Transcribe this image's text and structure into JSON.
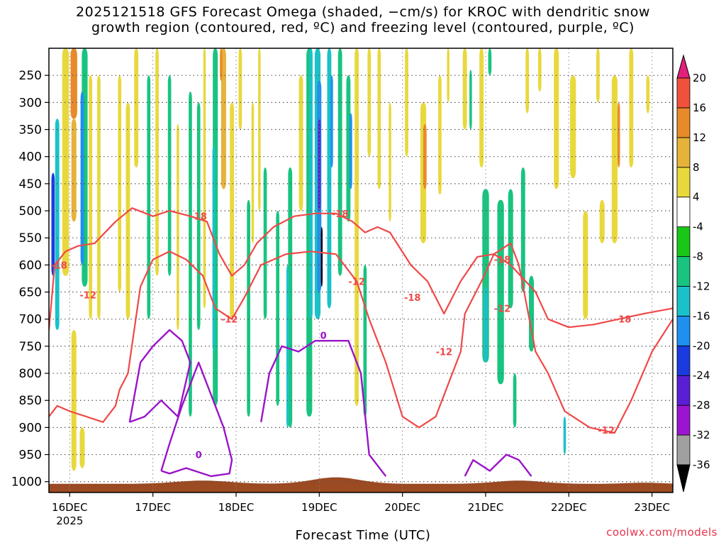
{
  "chart_data": {
    "type": "heatmap",
    "title_lines": [
      "2025121518 GFS Forecast Omega (shaded, −cm/s) for KROC with dendritic snow",
      "growth region (contoured, red, ºC) and freezing level (contoured, purple, ºC)"
    ],
    "xlabel": "Forecast Time (UTC)",
    "x_ticks": [
      "16DEC",
      "17DEC",
      "18DEC",
      "19DEC",
      "20DEC",
      "21DEC",
      "22DEC",
      "23DEC"
    ],
    "x_year": "2025",
    "x_range_days": [
      15.75,
      23.25
    ],
    "y_ticks": [
      250,
      300,
      350,
      400,
      450,
      500,
      550,
      600,
      650,
      700,
      750,
      800,
      850,
      900,
      950,
      1000
    ],
    "y_range_hpa": [
      1020,
      200
    ],
    "colorbar": {
      "levels": [
        -36,
        -32,
        -28,
        -24,
        -20,
        -16,
        -12,
        -8,
        -4,
        4,
        8,
        12,
        16,
        20
      ],
      "colors": [
        "#000000",
        "#a0a0a0",
        "#9b14cf",
        "#5a1fd4",
        "#1a3be0",
        "#1f8ff0",
        "#19c2c9",
        "#18c480",
        "#19c716",
        "#ffffff",
        "#e8d83c",
        "#e6b23a",
        "#e88a2a",
        "#f0503c",
        "#e0207a"
      ]
    },
    "red_contour_labels": [
      "-18",
      "-12"
    ],
    "purple_contour_label": "0",
    "omega_cells": [
      {
        "day": 15.95,
        "p0": 200,
        "p1": 620,
        "w": 0.08,
        "v": 8
      },
      {
        "day": 16.05,
        "p0": 200,
        "p1": 330,
        "w": 0.08,
        "v": 16
      },
      {
        "day": 16.05,
        "p0": 330,
        "p1": 520,
        "w": 0.06,
        "v": 10
      },
      {
        "day": 15.85,
        "p0": 330,
        "p1": 720,
        "w": 0.05,
        "v": -12
      },
      {
        "day": 15.8,
        "p0": 430,
        "p1": 620,
        "w": 0.04,
        "v": -22
      },
      {
        "day": 16.18,
        "p0": 200,
        "p1": 640,
        "w": 0.07,
        "v": -10
      },
      {
        "day": 16.15,
        "p0": 280,
        "p1": 600,
        "w": 0.04,
        "v": -16
      },
      {
        "day": 16.25,
        "p0": 250,
        "p1": 700,
        "w": 0.04,
        "v": 6
      },
      {
        "day": 16.35,
        "p0": 250,
        "p1": 700,
        "w": 0.04,
        "v": 6
      },
      {
        "day": 16.05,
        "p0": 720,
        "p1": 980,
        "w": 0.06,
        "v": 6
      },
      {
        "day": 16.15,
        "p0": 900,
        "p1": 975,
        "w": 0.06,
        "v": 6
      },
      {
        "day": 16.6,
        "p0": 250,
        "p1": 650,
        "w": 0.04,
        "v": 6
      },
      {
        "day": 16.7,
        "p0": 300,
        "p1": 700,
        "w": 0.05,
        "v": 6
      },
      {
        "day": 16.8,
        "p0": 200,
        "p1": 420,
        "w": 0.05,
        "v": 6
      },
      {
        "day": 16.95,
        "p0": 250,
        "p1": 700,
        "w": 0.04,
        "v": -8
      },
      {
        "day": 17.05,
        "p0": 200,
        "p1": 620,
        "w": 0.04,
        "v": 6
      },
      {
        "day": 17.2,
        "p0": 250,
        "p1": 620,
        "w": 0.04,
        "v": -8
      },
      {
        "day": 17.3,
        "p0": 340,
        "p1": 720,
        "w": 0.03,
        "v": 6
      },
      {
        "day": 17.45,
        "p0": 280,
        "p1": 880,
        "w": 0.04,
        "v": -8
      },
      {
        "day": 17.55,
        "p0": 300,
        "p1": 720,
        "w": 0.04,
        "v": -8
      },
      {
        "day": 17.62,
        "p0": 200,
        "p1": 680,
        "w": 0.03,
        "v": 6
      },
      {
        "day": 17.75,
        "p0": 200,
        "p1": 860,
        "w": 0.06,
        "v": -8
      },
      {
        "day": 17.73,
        "p0": 380,
        "p1": 760,
        "w": 0.03,
        "v": -14
      },
      {
        "day": 17.85,
        "p0": 200,
        "p1": 460,
        "w": 0.06,
        "v": 10
      },
      {
        "day": 17.82,
        "p0": 200,
        "p1": 260,
        "w": 0.03,
        "v": 16
      },
      {
        "day": 17.95,
        "p0": 300,
        "p1": 700,
        "w": 0.05,
        "v": 6
      },
      {
        "day": 18.05,
        "p0": 200,
        "p1": 350,
        "w": 0.04,
        "v": 6
      },
      {
        "day": 18.15,
        "p0": 480,
        "p1": 880,
        "w": 0.04,
        "v": -8
      },
      {
        "day": 18.2,
        "p0": 300,
        "p1": 560,
        "w": 0.03,
        "v": 6
      },
      {
        "day": 18.28,
        "p0": 200,
        "p1": 500,
        "w": 0.03,
        "v": 6
      },
      {
        "day": 18.35,
        "p0": 420,
        "p1": 700,
        "w": 0.04,
        "v": -8
      },
      {
        "day": 18.5,
        "p0": 500,
        "p1": 860,
        "w": 0.04,
        "v": -8
      },
      {
        "day": 18.65,
        "p0": 420,
        "p1": 900,
        "w": 0.05,
        "v": -8
      },
      {
        "day": 18.62,
        "p0": 600,
        "p1": 900,
        "w": 0.03,
        "v": -14
      },
      {
        "day": 18.78,
        "p0": 250,
        "p1": 500,
        "w": 0.05,
        "v": 6
      },
      {
        "day": 18.88,
        "p0": 200,
        "p1": 880,
        "w": 0.07,
        "v": -8
      },
      {
        "day": 18.9,
        "p0": 200,
        "p1": 700,
        "w": 0.04,
        "v": -14
      },
      {
        "day": 18.98,
        "p0": 200,
        "p1": 700,
        "w": 0.07,
        "v": -12
      },
      {
        "day": 19.0,
        "p0": 260,
        "p1": 650,
        "w": 0.05,
        "v": -18
      },
      {
        "day": 19.0,
        "p0": 330,
        "p1": 500,
        "w": 0.03,
        "v": -24
      },
      {
        "day": 19.03,
        "p0": 530,
        "p1": 640,
        "w": 0.02,
        "v": -36
      },
      {
        "day": 19.12,
        "p0": 200,
        "p1": 680,
        "w": 0.05,
        "v": -12
      },
      {
        "day": 19.15,
        "p0": 250,
        "p1": 420,
        "w": 0.03,
        "v": -18
      },
      {
        "day": 19.25,
        "p0": 200,
        "p1": 620,
        "w": 0.05,
        "v": -8
      },
      {
        "day": 19.35,
        "p0": 250,
        "p1": 520,
        "w": 0.05,
        "v": -10
      },
      {
        "day": 19.38,
        "p0": 320,
        "p1": 460,
        "w": 0.03,
        "v": -16
      },
      {
        "day": 19.45,
        "p0": 200,
        "p1": 860,
        "w": 0.05,
        "v": 6
      },
      {
        "day": 19.55,
        "p0": 600,
        "p1": 880,
        "w": 0.04,
        "v": -8
      },
      {
        "day": 19.6,
        "p0": 200,
        "p1": 400,
        "w": 0.04,
        "v": 6
      },
      {
        "day": 19.72,
        "p0": 200,
        "p1": 460,
        "w": 0.04,
        "v": 6
      },
      {
        "day": 19.85,
        "p0": 300,
        "p1": 520,
        "w": 0.03,
        "v": 6
      },
      {
        "day": 20.05,
        "p0": 200,
        "p1": 400,
        "w": 0.04,
        "v": 6
      },
      {
        "day": 20.25,
        "p0": 300,
        "p1": 560,
        "w": 0.07,
        "v": 8
      },
      {
        "day": 20.27,
        "p0": 340,
        "p1": 460,
        "w": 0.04,
        "v": 14
      },
      {
        "day": 20.45,
        "p0": 250,
        "p1": 470,
        "w": 0.04,
        "v": 6
      },
      {
        "day": 20.55,
        "p0": 200,
        "p1": 300,
        "w": 0.03,
        "v": 6
      },
      {
        "day": 20.75,
        "p0": 200,
        "p1": 350,
        "w": 0.05,
        "v": 6
      },
      {
        "day": 20.95,
        "p0": 200,
        "p1": 420,
        "w": 0.05,
        "v": 6
      },
      {
        "day": 20.82,
        "p0": 240,
        "p1": 350,
        "w": 0.03,
        "v": -10
      },
      {
        "day": 21.05,
        "p0": 200,
        "p1": 250,
        "w": 0.04,
        "v": -8
      },
      {
        "day": 21.0,
        "p0": 460,
        "p1": 780,
        "w": 0.08,
        "v": -10
      },
      {
        "day": 21.0,
        "p0": 640,
        "p1": 780,
        "w": 0.05,
        "v": -14
      },
      {
        "day": 21.18,
        "p0": 480,
        "p1": 820,
        "w": 0.08,
        "v": -10
      },
      {
        "day": 21.3,
        "p0": 460,
        "p1": 680,
        "w": 0.06,
        "v": -8
      },
      {
        "day": 21.45,
        "p0": 420,
        "p1": 650,
        "w": 0.05,
        "v": -8
      },
      {
        "day": 21.55,
        "p0": 620,
        "p1": 760,
        "w": 0.06,
        "v": -8
      },
      {
        "day": 21.35,
        "p0": 800,
        "p1": 900,
        "w": 0.04,
        "v": -10
      },
      {
        "day": 21.5,
        "p0": 200,
        "p1": 320,
        "w": 0.04,
        "v": 6
      },
      {
        "day": 21.65,
        "p0": 200,
        "p1": 280,
        "w": 0.04,
        "v": 6
      },
      {
        "day": 21.85,
        "p0": 200,
        "p1": 460,
        "w": 0.06,
        "v": 6
      },
      {
        "day": 21.95,
        "p0": 880,
        "p1": 950,
        "w": 0.03,
        "v": -14
      },
      {
        "day": 22.05,
        "p0": 250,
        "p1": 440,
        "w": 0.07,
        "v": 6
      },
      {
        "day": 22.2,
        "p0": 500,
        "p1": 700,
        "w": 0.06,
        "v": 6
      },
      {
        "day": 22.35,
        "p0": 200,
        "p1": 300,
        "w": 0.04,
        "v": 6
      },
      {
        "day": 22.55,
        "p0": 250,
        "p1": 560,
        "w": 0.07,
        "v": 8
      },
      {
        "day": 22.6,
        "p0": 300,
        "p1": 420,
        "w": 0.03,
        "v": 14
      },
      {
        "day": 22.75,
        "p0": 200,
        "p1": 420,
        "w": 0.05,
        "v": 6
      },
      {
        "day": 22.95,
        "p0": 250,
        "p1": 320,
        "w": 0.04,
        "v": 6
      },
      {
        "day": 22.4,
        "p0": 480,
        "p1": 560,
        "w": 0.06,
        "v": 6
      }
    ],
    "red_contours": [
      [
        [
          15.75,
          720
        ],
        [
          15.82,
          600
        ],
        [
          15.95,
          575
        ],
        [
          16.1,
          565
        ],
        [
          16.3,
          560
        ],
        [
          16.55,
          520
        ],
        [
          16.75,
          495
        ],
        [
          17.0,
          510
        ],
        [
          17.2,
          500
        ],
        [
          17.45,
          510
        ],
        [
          17.65,
          520
        ],
        [
          17.8,
          580
        ],
        [
          17.95,
          620
        ],
        [
          18.1,
          600
        ],
        [
          18.25,
          560
        ],
        [
          18.45,
          530
        ],
        [
          18.7,
          510
        ],
        [
          18.95,
          505
        ],
        [
          19.2,
          505
        ],
        [
          19.4,
          520
        ],
        [
          19.55,
          540
        ],
        [
          19.7,
          530
        ],
        [
          19.85,
          540
        ],
        [
          20.1,
          600
        ],
        [
          20.3,
          630
        ],
        [
          20.5,
          690
        ],
        [
          20.7,
          630
        ],
        [
          20.9,
          585
        ],
        [
          21.1,
          580
        ],
        [
          21.3,
          600
        ],
        [
          21.6,
          650
        ],
        [
          21.75,
          700
        ],
        [
          22.0,
          715
        ],
        [
          22.3,
          710
        ],
        [
          22.6,
          700
        ],
        [
          22.9,
          690
        ],
        [
          23.25,
          680
        ]
      ],
      [
        [
          15.75,
          880
        ],
        [
          15.85,
          860
        ],
        [
          16.0,
          870
        ],
        [
          16.2,
          880
        ],
        [
          16.4,
          890
        ],
        [
          16.55,
          860
        ],
        [
          16.6,
          830
        ],
        [
          16.7,
          800
        ],
        [
          16.85,
          640
        ],
        [
          17.0,
          590
        ],
        [
          17.2,
          575
        ],
        [
          17.4,
          590
        ],
        [
          17.6,
          620
        ],
        [
          17.75,
          680
        ],
        [
          17.95,
          700
        ],
        [
          18.1,
          660
        ],
        [
          18.3,
          600
        ],
        [
          18.6,
          580
        ],
        [
          18.9,
          575
        ],
        [
          19.2,
          580
        ],
        [
          19.45,
          630
        ],
        [
          19.6,
          700
        ],
        [
          19.8,
          780
        ],
        [
          20.0,
          880
        ],
        [
          20.2,
          900
        ],
        [
          20.4,
          880
        ],
        [
          20.55,
          820
        ],
        [
          20.7,
          760
        ],
        [
          20.75,
          690
        ],
        [
          20.95,
          630
        ],
        [
          21.1,
          580
        ],
        [
          21.3,
          560
        ],
        [
          21.4,
          600
        ],
        [
          21.5,
          680
        ],
        [
          21.6,
          760
        ],
        [
          21.75,
          800
        ],
        [
          21.95,
          870
        ],
        [
          22.25,
          900
        ],
        [
          22.55,
          910
        ],
        [
          22.75,
          850
        ],
        [
          23.0,
          760
        ],
        [
          23.25,
          700
        ]
      ]
    ],
    "purple_contours": [
      [
        [
          17.1,
          980
        ],
        [
          17.2,
          930
        ],
        [
          17.35,
          860
        ],
        [
          17.55,
          780
        ],
        [
          17.7,
          840
        ],
        [
          17.85,
          900
        ],
        [
          17.95,
          960
        ],
        [
          17.92,
          985
        ],
        [
          17.7,
          990
        ],
        [
          17.4,
          975
        ],
        [
          17.2,
          985
        ],
        [
          17.1,
          980
        ]
      ],
      [
        [
          16.72,
          890
        ],
        [
          16.85,
          780
        ],
        [
          17.0,
          750
        ],
        [
          17.2,
          720
        ],
        [
          17.35,
          740
        ],
        [
          17.45,
          780
        ],
        [
          17.3,
          880
        ],
        [
          17.1,
          850
        ],
        [
          16.9,
          880
        ],
        [
          16.72,
          890
        ]
      ],
      [
        [
          18.3,
          890
        ],
        [
          18.4,
          800
        ],
        [
          18.55,
          750
        ],
        [
          18.75,
          760
        ],
        [
          18.95,
          740
        ],
        [
          19.15,
          740
        ],
        [
          19.35,
          740
        ],
        [
          19.5,
          800
        ],
        [
          19.6,
          950
        ],
        [
          19.8,
          990
        ]
      ],
      [
        [
          20.75,
          990
        ],
        [
          20.85,
          960
        ],
        [
          21.05,
          980
        ],
        [
          21.25,
          950
        ],
        [
          21.4,
          960
        ],
        [
          21.55,
          990
        ]
      ]
    ]
  },
  "credit": "coolwx.com/models"
}
